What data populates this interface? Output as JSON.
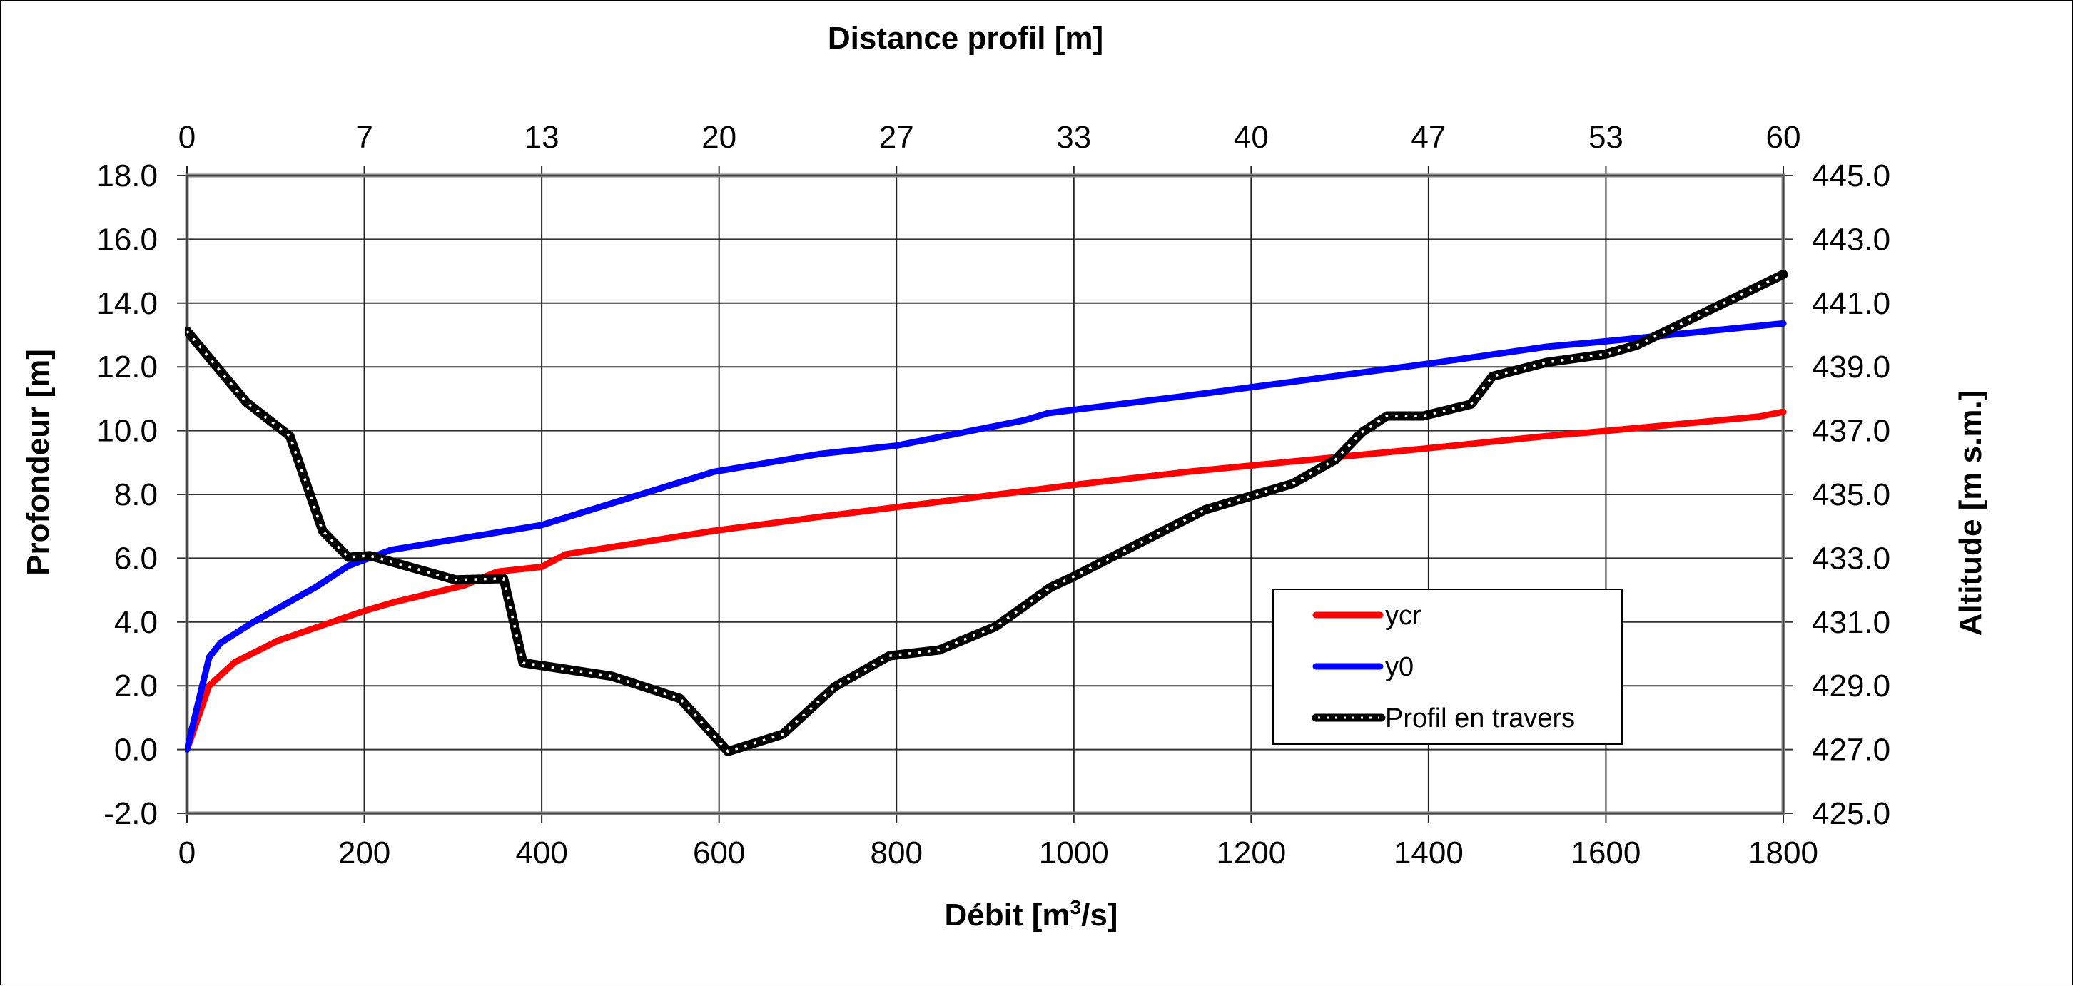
{
  "chart_data": {
    "type": "line",
    "title": "",
    "xlabel": "Débit [m³/s]",
    "xlabel_parts": {
      "before": "Débit [m",
      "sup": "3",
      "after": "/s]"
    },
    "ylabel": "Profondeur [m]",
    "y2label": "Altitude [m s.m.]",
    "x2label": "Distance profil [m]",
    "xlim": [
      0,
      1800
    ],
    "ylim": [
      -2,
      18
    ],
    "y2lim": [
      425,
      445
    ],
    "x2lim": [
      0,
      60
    ],
    "grid": true,
    "legend_position": "bottom-right",
    "x_ticks": [
      "0",
      "200",
      "400",
      "600",
      "800",
      "1000",
      "1200",
      "1400",
      "1600",
      "1800"
    ],
    "x_tick_values": [
      0,
      200,
      400,
      600,
      800,
      1000,
      1200,
      1400,
      1600,
      1800
    ],
    "x2_ticks": [
      "0",
      "7",
      "13",
      "20",
      "27",
      "33",
      "40",
      "47",
      "53",
      "60"
    ],
    "y_ticks": [
      "18.0",
      "16.0",
      "14.0",
      "12.0",
      "10.0",
      "8.0",
      "6.0",
      "4.0",
      "2.0",
      "0.0",
      "-2.0"
    ],
    "y_tick_values": [
      18,
      16,
      14,
      12,
      10,
      8,
      6,
      4,
      2,
      0,
      -2
    ],
    "y2_ticks": [
      "445.0",
      "443.0",
      "441.0",
      "439.0",
      "437.0",
      "435.0",
      "433.0",
      "431.0",
      "429.0",
      "427.0",
      "425.0"
    ],
    "series": [
      {
        "name": "ycr",
        "color": "#ff0000",
        "style": "solid",
        "x": [
          0,
          25,
          54,
          102,
          200,
          236,
          312,
          350,
          400,
          427,
          594,
          714,
          1000,
          1132,
          1400,
          1533,
          1600,
          1772,
          1800
        ],
        "y": [
          0.0,
          2.0,
          2.74,
          3.41,
          4.35,
          4.64,
          5.14,
          5.58,
          5.73,
          6.12,
          6.86,
          7.3,
          8.3,
          8.72,
          9.45,
          9.83,
          9.99,
          10.44,
          10.59
        ]
      },
      {
        "name": "y0",
        "color": "#0000ff",
        "style": "solid",
        "x": [
          0,
          25,
          38,
          75,
          145,
          182,
          230,
          400,
          594,
          714,
          800,
          945,
          971,
          1132,
          1400,
          1533,
          1600,
          1800
        ],
        "y": [
          0.0,
          2.9,
          3.35,
          4.0,
          5.09,
          5.76,
          6.26,
          7.04,
          8.71,
          9.27,
          9.53,
          10.33,
          10.55,
          11.11,
          12.1,
          12.63,
          12.8,
          13.36
        ]
      },
      {
        "name": "Profil en travers",
        "color": "#000000",
        "style": "dotted-thick",
        "x": [
          0,
          67,
          116,
          153,
          182,
          206,
          303,
          357,
          379,
          479,
          556,
          610,
          672,
          730,
          792,
          848,
          912,
          974,
          998,
          1148,
          1247,
          1295,
          1325,
          1353,
          1394,
          1448,
          1472,
          1533,
          1600,
          1635,
          1800
        ],
        "y": [
          13.12,
          10.89,
          9.83,
          6.86,
          6.03,
          6.08,
          5.32,
          5.36,
          2.72,
          2.3,
          1.6,
          -0.06,
          0.48,
          1.96,
          2.94,
          3.12,
          3.86,
          5.09,
          5.4,
          7.52,
          8.34,
          9.09,
          9.95,
          10.46,
          10.46,
          10.83,
          11.7,
          12.14,
          12.4,
          12.68,
          14.9
        ]
      }
    ]
  },
  "legend": {
    "items": [
      {
        "label": "ycr",
        "color": "#ff0000"
      },
      {
        "label": "y0",
        "color": "#0000ff"
      },
      {
        "label": "Profil en travers",
        "color": "#000000"
      }
    ]
  }
}
